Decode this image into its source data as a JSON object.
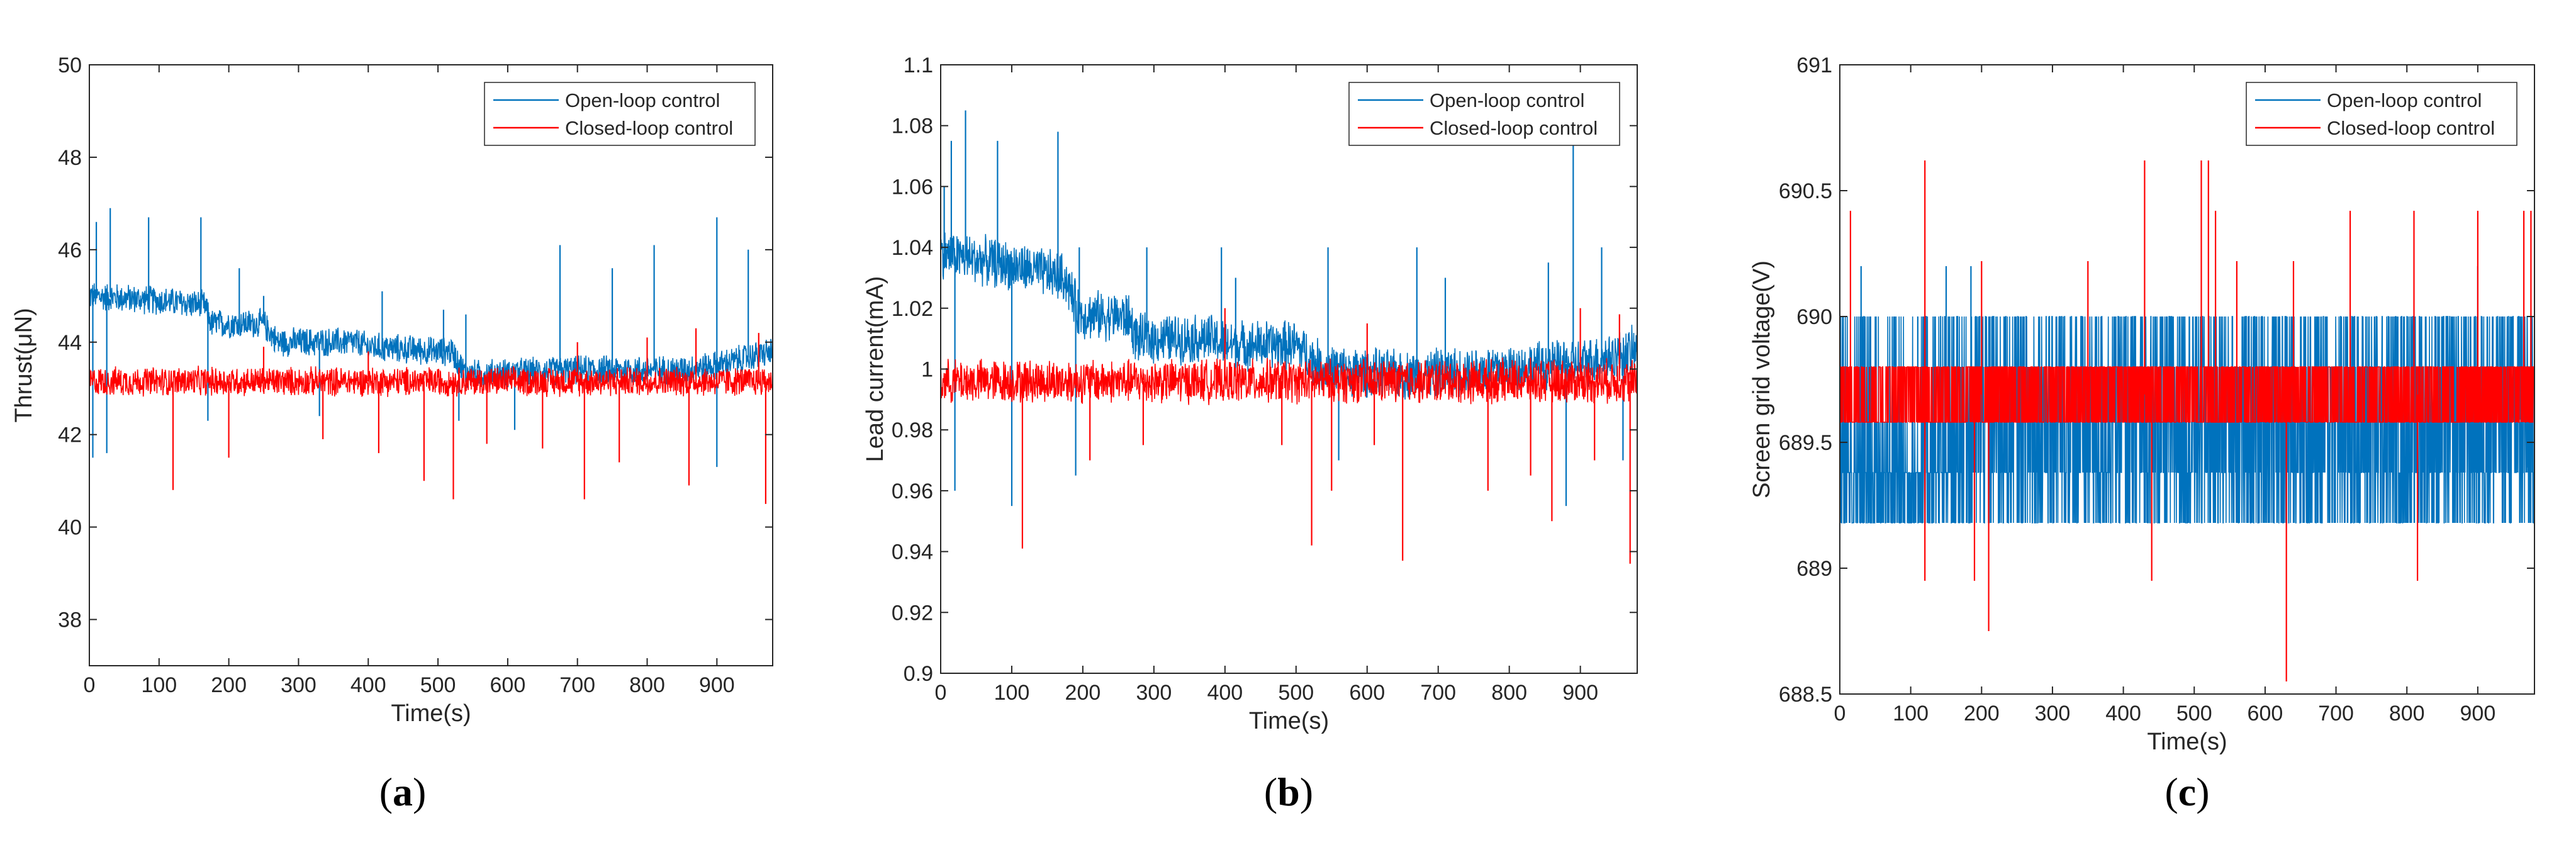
{
  "chart_data": [
    {
      "type": "line",
      "panel_label": "a",
      "xlabel": "Time(s)",
      "ylabel": "Thrust(μN)",
      "xlim": [
        0,
        980
      ],
      "ylim": [
        37,
        50
      ],
      "xticks": [
        0,
        100,
        200,
        300,
        400,
        500,
        600,
        700,
        800,
        900
      ],
      "yticks": [
        38,
        40,
        42,
        44,
        46,
        48,
        50
      ],
      "legend_position": "top-right",
      "series": [
        {
          "name": "Open-loop control",
          "color": "#0072BD",
          "trend": [
            [
              0,
              45.0
            ],
            [
              100,
              44.9
            ],
            [
              165,
              44.8
            ],
            [
              175,
              44.4
            ],
            [
              250,
              44.4
            ],
            [
              270,
              44.0
            ],
            [
              380,
              44.0
            ],
            [
              400,
              43.9
            ],
            [
              500,
              43.8
            ],
            [
              520,
              43.8
            ],
            [
              540,
              43.3
            ],
            [
              700,
              43.4
            ],
            [
              850,
              43.4
            ],
            [
              900,
              43.5
            ],
            [
              980,
              43.8
            ]
          ],
          "band": 0.35,
          "spikes": [
            [
              10,
              46.6
            ],
            [
              30,
              46.9
            ],
            [
              85,
              46.7
            ],
            [
              160,
              46.7
            ],
            [
              215,
              45.6
            ],
            [
              250,
              45.0
            ],
            [
              420,
              45.1
            ],
            [
              508,
              44.7
            ],
            [
              540,
              44.6
            ],
            [
              675,
              46.1
            ],
            [
              750,
              45.6
            ],
            [
              810,
              46.1
            ],
            [
              900,
              46.7
            ],
            [
              945,
              46.0
            ],
            [
              5,
              41.5
            ],
            [
              25,
              41.6
            ],
            [
              170,
              42.3
            ],
            [
              330,
              42.4
            ],
            [
              530,
              42.3
            ],
            [
              610,
              42.1
            ],
            [
              900,
              41.3
            ]
          ]
        },
        {
          "name": "Closed-loop control",
          "color": "#FF0000",
          "trend": [
            [
              0,
              43.15
            ],
            [
              980,
              43.15
            ]
          ],
          "band": 0.35,
          "spikes": [
            [
              120,
              40.8
            ],
            [
              200,
              41.5
            ],
            [
              335,
              41.9
            ],
            [
              415,
              41.6
            ],
            [
              480,
              41.0
            ],
            [
              522,
              40.6
            ],
            [
              570,
              41.8
            ],
            [
              650,
              41.7
            ],
            [
              710,
              40.6
            ],
            [
              760,
              41.4
            ],
            [
              860,
              40.9
            ],
            [
              970,
              40.5
            ],
            [
              250,
              43.9
            ],
            [
              400,
              43.8
            ],
            [
              700,
              44.0
            ],
            [
              800,
              44.1
            ],
            [
              870,
              44.3
            ],
            [
              960,
              44.2
            ]
          ]
        }
      ]
    },
    {
      "type": "line",
      "panel_label": "b",
      "xlabel": "Time(s)",
      "ylabel": "Lead current(mA)",
      "xlim": [
        0,
        980
      ],
      "ylim": [
        0.9,
        1.1
      ],
      "xticks": [
        0,
        100,
        200,
        300,
        400,
        500,
        600,
        700,
        800,
        900
      ],
      "yticks": [
        0.9,
        0.92,
        0.94,
        0.96,
        0.98,
        1,
        1.02,
        1.04,
        1.06,
        1.08,
        1.1
      ],
      "legend_position": "top-right",
      "series": [
        {
          "name": "Open-loop control",
          "color": "#0072BD",
          "trend": [
            [
              0,
              1.038
            ],
            [
              100,
              1.034
            ],
            [
              175,
              1.03
            ],
            [
              195,
              1.018
            ],
            [
              265,
              1.017
            ],
            [
              275,
              1.01
            ],
            [
              380,
              1.01
            ],
            [
              400,
              1.008
            ],
            [
              500,
              1.008
            ],
            [
              520,
              1.004
            ],
            [
              540,
              1.0
            ],
            [
              650,
              0.998
            ],
            [
              780,
              1.0
            ],
            [
              900,
              1.002
            ],
            [
              980,
              1.006
            ]
          ],
          "band": 0.009,
          "spikes": [
            [
              5,
              1.06
            ],
            [
              15,
              1.075
            ],
            [
              35,
              1.085
            ],
            [
              80,
              1.075
            ],
            [
              165,
              1.078
            ],
            [
              195,
              1.04
            ],
            [
              290,
              1.04
            ],
            [
              395,
              1.04
            ],
            [
              415,
              1.03
            ],
            [
              545,
              1.04
            ],
            [
              670,
              1.04
            ],
            [
              710,
              1.03
            ],
            [
              855,
              1.035
            ],
            [
              890,
              1.082
            ],
            [
              930,
              1.04
            ],
            [
              20,
              0.96
            ],
            [
              100,
              0.955
            ],
            [
              190,
              0.965
            ],
            [
              560,
              0.97
            ],
            [
              880,
              0.955
            ],
            [
              960,
              0.97
            ]
          ]
        },
        {
          "name": "Closed-loop control",
          "color": "#FF0000",
          "trend": [
            [
              0,
              0.996
            ],
            [
              980,
              0.996
            ]
          ],
          "band": 0.008,
          "spikes": [
            [
              115,
              0.941
            ],
            [
              210,
              0.97
            ],
            [
              285,
              0.975
            ],
            [
              480,
              0.975
            ],
            [
              522,
              0.942
            ],
            [
              550,
              0.96
            ],
            [
              610,
              0.975
            ],
            [
              650,
              0.937
            ],
            [
              770,
              0.96
            ],
            [
              830,
              0.965
            ],
            [
              860,
              0.95
            ],
            [
              920,
              0.97
            ],
            [
              970,
              0.936
            ],
            [
              400,
              1.02
            ],
            [
              600,
              1.015
            ],
            [
              900,
              1.02
            ],
            [
              955,
              1.018
            ]
          ]
        }
      ]
    },
    {
      "type": "line",
      "panel_label": "c",
      "xlabel": "Time(s)",
      "ylabel": "Screen grid voltage(V)",
      "xlim": [
        0,
        980
      ],
      "ylim": [
        688.5,
        691
      ],
      "xticks": [
        0,
        100,
        200,
        300,
        400,
        500,
        600,
        700,
        800,
        900
      ],
      "yticks": [
        688.5,
        689,
        689.5,
        690,
        690.5,
        691
      ],
      "legend_position": "top-right",
      "series": [
        {
          "name": "Open-loop control",
          "color": "#0072BD",
          "levels": [
            689.18,
            689.38,
            689.58,
            689.8,
            690.0
          ],
          "spikes": [
            [
              30,
              690.2
            ],
            [
              110,
              690.0
            ],
            [
              150,
              690.2
            ],
            [
              185,
              690.2
            ],
            [
              280,
              689.8
            ],
            [
              900,
              690.2
            ],
            [
              960,
              690.0
            ],
            [
              970,
              689.4
            ]
          ]
        },
        {
          "name": "Closed-loop control",
          "color": "#FF0000",
          "levels": [
            689.58,
            689.8
          ],
          "spikes": [
            [
              15,
              690.42
            ],
            [
              120,
              690.62
            ],
            [
              200,
              690.22
            ],
            [
              210,
              688.75
            ],
            [
              190,
              688.95
            ],
            [
              120,
              688.95
            ],
            [
              430,
              690.62
            ],
            [
              440,
              688.95
            ],
            [
              510,
              690.62
            ],
            [
              520,
              690.62
            ],
            [
              530,
              690.42
            ],
            [
              630,
              688.55
            ],
            [
              640,
              690.22
            ],
            [
              720,
              690.42
            ],
            [
              810,
              690.42
            ],
            [
              815,
              688.95
            ],
            [
              900,
              690.42
            ],
            [
              965,
              690.42
            ],
            [
              975,
              690.42
            ],
            [
              350,
              690.22
            ],
            [
              560,
              690.22
            ]
          ]
        }
      ]
    }
  ]
}
